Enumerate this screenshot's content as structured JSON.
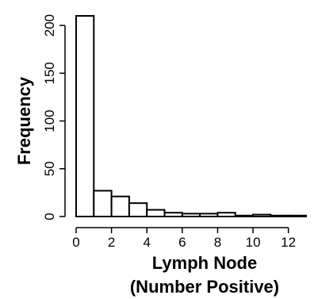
{
  "chart_data": {
    "type": "bar",
    "title": "",
    "xlabel_lines": [
      "Lymph Node",
      "(Number Positive)"
    ],
    "ylabel": "Frequency",
    "bins": [
      {
        "start": 0,
        "end": 1,
        "count": 210
      },
      {
        "start": 1,
        "end": 2,
        "count": 27
      },
      {
        "start": 2,
        "end": 3,
        "count": 21
      },
      {
        "start": 3,
        "end": 4,
        "count": 14
      },
      {
        "start": 4,
        "end": 5,
        "count": 7
      },
      {
        "start": 5,
        "end": 6,
        "count": 4
      },
      {
        "start": 6,
        "end": 7,
        "count": 3
      },
      {
        "start": 7,
        "end": 8,
        "count": 3
      },
      {
        "start": 8,
        "end": 9,
        "count": 4
      },
      {
        "start": 9,
        "end": 10,
        "count": 1
      },
      {
        "start": 10,
        "end": 11,
        "count": 2
      },
      {
        "start": 11,
        "end": 12,
        "count": 1
      },
      {
        "start": 12,
        "end": 13,
        "count": 1
      }
    ],
    "xlim": [
      0,
      13
    ],
    "ylim": [
      0,
      215
    ],
    "x_ticks": [
      0,
      2,
      4,
      6,
      8,
      10,
      12
    ],
    "y_ticks": [
      0,
      50,
      100,
      150,
      200
    ],
    "colors": {
      "bar_fill": "#ffffff",
      "bar_stroke": "#000000"
    }
  }
}
